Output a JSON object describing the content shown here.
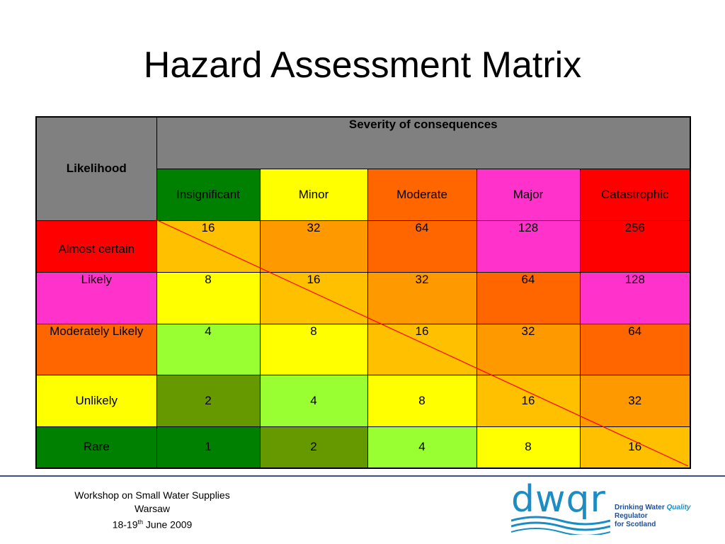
{
  "title": "Hazard Assessment Matrix",
  "matrix": {
    "likelihood_header": "Likelihood",
    "severity_header": "Severity of consequences",
    "severity_levels": [
      {
        "label": "Insignificant",
        "color": "#008000"
      },
      {
        "label": "Minor",
        "color": "#ffff00"
      },
      {
        "label": "Moderate",
        "color": "#ff6600"
      },
      {
        "label": "Major",
        "color": "#ff33cc"
      },
      {
        "label": "Catastrophic",
        "color": "#ff0000"
      }
    ],
    "rows": [
      {
        "label": "Almost certain",
        "label_color": "#ff0000",
        "values": [
          "16",
          "32",
          "64",
          "128",
          "256"
        ],
        "colors": [
          "#ffc000",
          "#ff9900",
          "#ff6600",
          "#ff33cc",
          "#ff0000"
        ]
      },
      {
        "label": "Likely",
        "label_color": "#ff33cc",
        "values": [
          "8",
          "16",
          "32",
          "64",
          "128"
        ],
        "colors": [
          "#ffff00",
          "#ffc000",
          "#ff9900",
          "#ff6600",
          "#ff33cc"
        ]
      },
      {
        "label": "Moderately Likely",
        "label_color": "#ff6600",
        "values": [
          "4",
          "8",
          "16",
          "32",
          "64"
        ],
        "colors": [
          "#99ff33",
          "#ffff00",
          "#ffc000",
          "#ff9900",
          "#ff6600"
        ]
      },
      {
        "label": "Unlikely",
        "label_color": "#ffff00",
        "values": [
          "2",
          "4",
          "8",
          "16",
          "32"
        ],
        "colors": [
          "#669900",
          "#99ff33",
          "#ffff00",
          "#ffc000",
          "#ff9900"
        ]
      },
      {
        "label": "Rare",
        "label_color": "#008000",
        "values": [
          "1",
          "2",
          "4",
          "8",
          "16"
        ],
        "colors": [
          "#008000",
          "#669900",
          "#99ff33",
          "#ffff00",
          "#ffc000"
        ]
      }
    ],
    "diagonal_color": "#ff0000"
  },
  "footer": {
    "line1": "Workshop on Small Water Supplies",
    "line2": "Warsaw",
    "date_prefix": "18-19",
    "date_sup": "th",
    "date_suffix": " June 2009"
  },
  "logo": {
    "wordmark": "dwqr",
    "tagline_pre": "Drinking Water ",
    "tagline_quality": "Quality",
    "tagline_post": " Regulator",
    "tagline_line2": "for Scotland",
    "wave_color": "#1b8cc4"
  }
}
